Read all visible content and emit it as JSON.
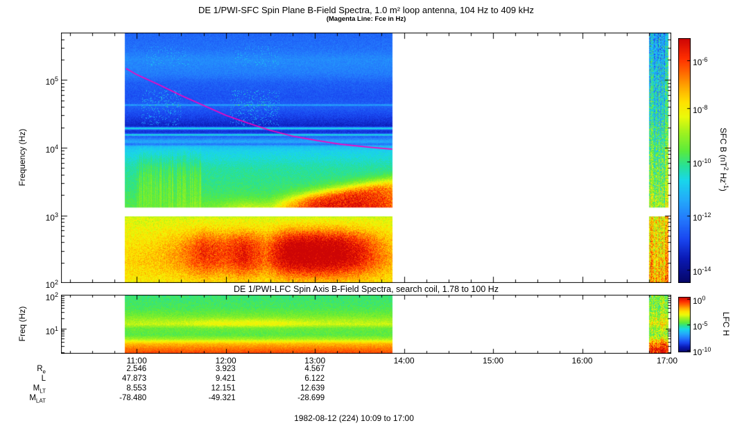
{
  "colors": {
    "background": "#ffffff",
    "axis": "#000000",
    "fce_line": "#ff00bb"
  },
  "top_panel": {
    "title": "DE 1/PWI-SFC  Spin Plane B-Field Spectra, 1.0 m² loop antenna, 104 Hz to 409 kHz",
    "subtitle": "(Magenta Line: Fce in Hz)",
    "ylabel": "Frequency (Hz)",
    "yticks": [
      "10^5",
      "10^4",
      "10^3",
      "10^2"
    ],
    "colorbar": {
      "label": "SFC B (nT^2 Hz^-1)",
      "ticks": [
        "10^-6",
        "10^-8",
        "10^-10",
        "10^-12",
        "10^-14"
      ]
    }
  },
  "bottom_panel": {
    "title": "DE 1/PWI-LFC  Spin Axis B-Field Spectra, search coil, 1.78 to 100 Hz",
    "ylabel": "Freq (Hz)",
    "yticks": [
      "10^2",
      "10^1"
    ],
    "colorbar": {
      "label": "LFC H",
      "ticks": [
        "10^0",
        "10^-5",
        "10^-10"
      ]
    }
  },
  "xaxis": {
    "start": "10:09",
    "end": "17:00",
    "ticks": [
      "11:00",
      "12:00",
      "13:00",
      "14:00",
      "15:00",
      "16:00",
      "17:00"
    ]
  },
  "ephemeris": {
    "rows": [
      {
        "label": "R",
        "sub": "e",
        "values": [
          "2.546",
          "3.923",
          "4.567"
        ]
      },
      {
        "label": "L",
        "sub": "",
        "values": [
          "47.873",
          "9.421",
          "6.122"
        ]
      },
      {
        "label": "M",
        "sub": "LT",
        "values": [
          "8.553",
          "12.151",
          "12.639"
        ]
      },
      {
        "label": "M",
        "sub": "LAT",
        "values": [
          "-78.480",
          "-49.321",
          "-28.699"
        ]
      }
    ]
  },
  "footer": "1982-08-12 (224) 10:09 to 17:00",
  "chart_data": [
    {
      "type": "heatmap",
      "panel": "SFC",
      "title": "DE 1/PWI-SFC Spin Plane B-Field Spectra, 1.0 m² loop antenna, 104 Hz to 409 kHz",
      "annotation": "Magenta Line: Fce in Hz",
      "ylabel": "Frequency (Hz)",
      "y_scale": "log",
      "y_range_hz": [
        100,
        500000
      ],
      "x_time_range": [
        "10:09",
        "17:00"
      ],
      "x_hours_range": [
        10.15,
        17.0
      ],
      "x_tick_labels": [
        "11:00",
        "12:00",
        "13:00",
        "14:00",
        "15:00",
        "16:00",
        "17:00"
      ],
      "colorbar": {
        "label": "SFC B (nT^2 Hz^-1)",
        "tick_labels": [
          "10^-6",
          "10^-8",
          "10^-10",
          "10^-12",
          "10^-14"
        ],
        "scale": "log",
        "palette": "rainbow-red-high"
      },
      "data_segments_hours": [
        [
          10.87,
          13.87
        ],
        [
          16.75,
          16.97
        ]
      ],
      "receiver_gap_hz": [
        970,
        1300
      ],
      "fce_line": {
        "color": "#ff00bb",
        "t_hours": [
          10.88,
          11.0,
          11.25,
          11.5,
          11.75,
          12.0,
          12.25,
          12.5,
          12.75,
          13.0,
          13.3,
          13.6,
          13.87
        ],
        "f_hz": [
          148000,
          120000,
          85000,
          59000,
          42000,
          30000,
          23000,
          18000,
          14800,
          12900,
          11200,
          10200,
          9500
        ]
      },
      "intensity_profile_logf_v": [
        [
          2.0,
          0.71
        ],
        [
          2.3,
          0.73
        ],
        [
          2.6,
          0.7
        ],
        [
          2.95,
          0.67
        ],
        [
          3.12,
          0.53
        ],
        [
          3.4,
          0.5
        ],
        [
          3.7,
          0.47
        ],
        [
          3.95,
          0.41
        ],
        [
          4.1,
          0.33
        ],
        [
          4.2,
          0.16
        ],
        [
          4.32,
          0.12
        ],
        [
          4.45,
          0.17
        ],
        [
          4.6,
          0.22
        ],
        [
          4.75,
          0.2
        ],
        [
          4.95,
          0.22
        ],
        [
          5.1,
          0.27
        ],
        [
          5.3,
          0.29
        ],
        [
          5.45,
          0.25
        ],
        [
          5.7,
          0.23
        ]
      ],
      "spectral_lines": [
        {
          "c": 4.285,
          "w": 0.018,
          "a": 0.3
        },
        {
          "c": 4.19,
          "w": 0.015,
          "a": 0.26
        },
        {
          "c": 4.63,
          "w": 0.012,
          "a": 0.12
        },
        {
          "c": 4.05,
          "w": 0.02,
          "a": -0.1
        }
      ],
      "env_below_gap": [
        [
          10.87,
          0.02
        ],
        [
          11.2,
          0.04
        ],
        [
          11.5,
          0.1
        ],
        [
          11.75,
          0.2
        ],
        [
          12.0,
          0.17
        ],
        [
          12.2,
          0.24
        ],
        [
          12.45,
          0.14
        ],
        [
          12.7,
          0.32
        ],
        [
          12.95,
          0.35
        ],
        [
          13.25,
          0.33
        ],
        [
          13.5,
          0.24
        ],
        [
          13.7,
          0.14
        ],
        [
          13.87,
          0.07
        ]
      ],
      "env_above_gap": [
        [
          10.87,
          0.0
        ],
        [
          11.3,
          0.0
        ],
        [
          11.9,
          0.06
        ],
        [
          12.2,
          0.15
        ],
        [
          12.5,
          0.13
        ],
        [
          12.75,
          0.3
        ],
        [
          12.95,
          0.4
        ],
        [
          13.15,
          0.44
        ],
        [
          13.45,
          0.44
        ],
        [
          13.7,
          0.4
        ],
        [
          13.87,
          0.34
        ]
      ],
      "strip_profile_logf_v": [
        [
          2.0,
          0.8
        ],
        [
          2.3,
          0.77
        ],
        [
          2.6,
          0.74
        ],
        [
          2.95,
          0.72
        ],
        [
          3.12,
          0.62
        ],
        [
          3.5,
          0.57
        ],
        [
          4.0,
          0.52
        ],
        [
          4.5,
          0.45
        ],
        [
          5.0,
          0.4
        ],
        [
          5.4,
          0.36
        ],
        [
          5.7,
          0.33
        ]
      ]
    },
    {
      "type": "heatmap",
      "panel": "LFC",
      "title": "DE 1/PWI-LFC Spin Axis B-Field Spectra, search coil, 1.78 to 100 Hz",
      "ylabel": "Freq (Hz)",
      "y_scale": "log",
      "y_range_hz": [
        1.78,
        100
      ],
      "colorbar": {
        "label": "LFC H",
        "tick_labels": [
          "10^0",
          "10^-5",
          "10^-10"
        ],
        "scale": "log",
        "palette": "rainbow-red-high"
      },
      "data_segments_hours": [
        [
          10.87,
          13.87
        ],
        [
          16.75,
          16.97
        ]
      ],
      "intensity_profile_logf_v": [
        [
          0.25,
          0.9
        ],
        [
          0.4,
          0.85
        ],
        [
          0.55,
          0.78
        ],
        [
          0.68,
          0.62
        ],
        [
          0.8,
          0.54
        ],
        [
          1.0,
          0.55
        ],
        [
          1.12,
          0.63
        ],
        [
          1.25,
          0.6
        ],
        [
          1.4,
          0.56
        ],
        [
          1.6,
          0.52
        ],
        [
          2.0,
          0.5
        ]
      ],
      "band_envelope": [
        [
          10.87,
          0.2
        ],
        [
          11.5,
          0.4
        ],
        [
          11.9,
          1.0
        ],
        [
          12.6,
          1.0
        ],
        [
          13.0,
          0.5
        ],
        [
          13.87,
          0.3
        ]
      ]
    }
  ]
}
